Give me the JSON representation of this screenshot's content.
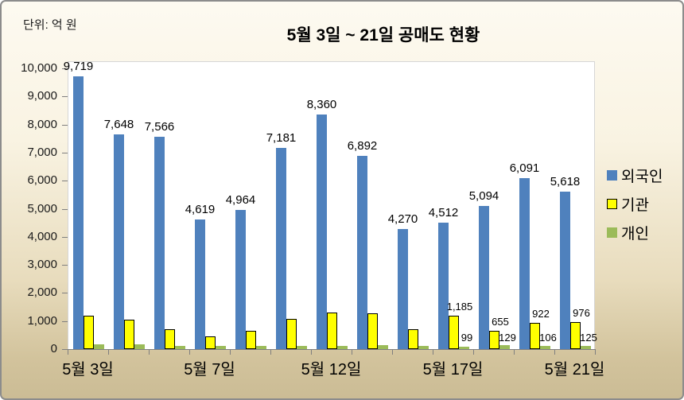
{
  "chart_data": {
    "type": "bar",
    "title": "5월 3일 ~ 21일 공매도 현황",
    "unit": "단위: 억 원",
    "n_groups": 13,
    "ylim": [
      0,
      10000
    ],
    "ytick_step": 1000,
    "grid": false,
    "legend_position": "right",
    "y_tick_labels": [
      "0",
      "1,000",
      "2,000",
      "3,000",
      "4,000",
      "5,000",
      "6,000",
      "7,000",
      "8,000",
      "9,000",
      "10,000"
    ],
    "x_ticks": [
      {
        "group": 0,
        "label": "5월 3일"
      },
      {
        "group": 3,
        "label": "5월 7일"
      },
      {
        "group": 6,
        "label": "5월 12일"
      },
      {
        "group": 9,
        "label": "5월 17일"
      },
      {
        "group": 12,
        "label": "5월 21일"
      }
    ],
    "series": [
      {
        "key": "foreigners",
        "name": "외국인",
        "color": "#4F81BD",
        "outline": false,
        "values": [
          9719,
          7648,
          7566,
          4619,
          4964,
          7181,
          8360,
          6892,
          4270,
          4512,
          5094,
          6091,
          5618
        ],
        "data_labels": [
          "9,719",
          "7,648",
          "7,566",
          "4,619",
          "4,964",
          "7,181",
          "8,360",
          "6,892",
          "4,270",
          "4,512",
          "5,094",
          "6,091",
          "5,618"
        ]
      },
      {
        "key": "institutions",
        "name": "기관",
        "color": "#FFFF00",
        "outline": true,
        "values": [
          1180,
          1060,
          700,
          450,
          640,
          1070,
          1300,
          1285,
          720,
          1185,
          655,
          922,
          976
        ],
        "data_labels": [
          "",
          "",
          "",
          "",
          "",
          "",
          "",
          "",
          "",
          "1,185",
          "655",
          "922",
          "976"
        ]
      },
      {
        "key": "individuals",
        "name": "개인",
        "color": "#9BBB59",
        "outline": false,
        "values": [
          170,
          175,
          120,
          115,
          100,
          115,
          120,
          130,
          115,
          99,
          129,
          106,
          125
        ],
        "data_labels": [
          "",
          "",
          "",
          "",
          "",
          "",
          "",
          "",
          "",
          "99",
          "129",
          "106",
          "125"
        ]
      }
    ]
  }
}
